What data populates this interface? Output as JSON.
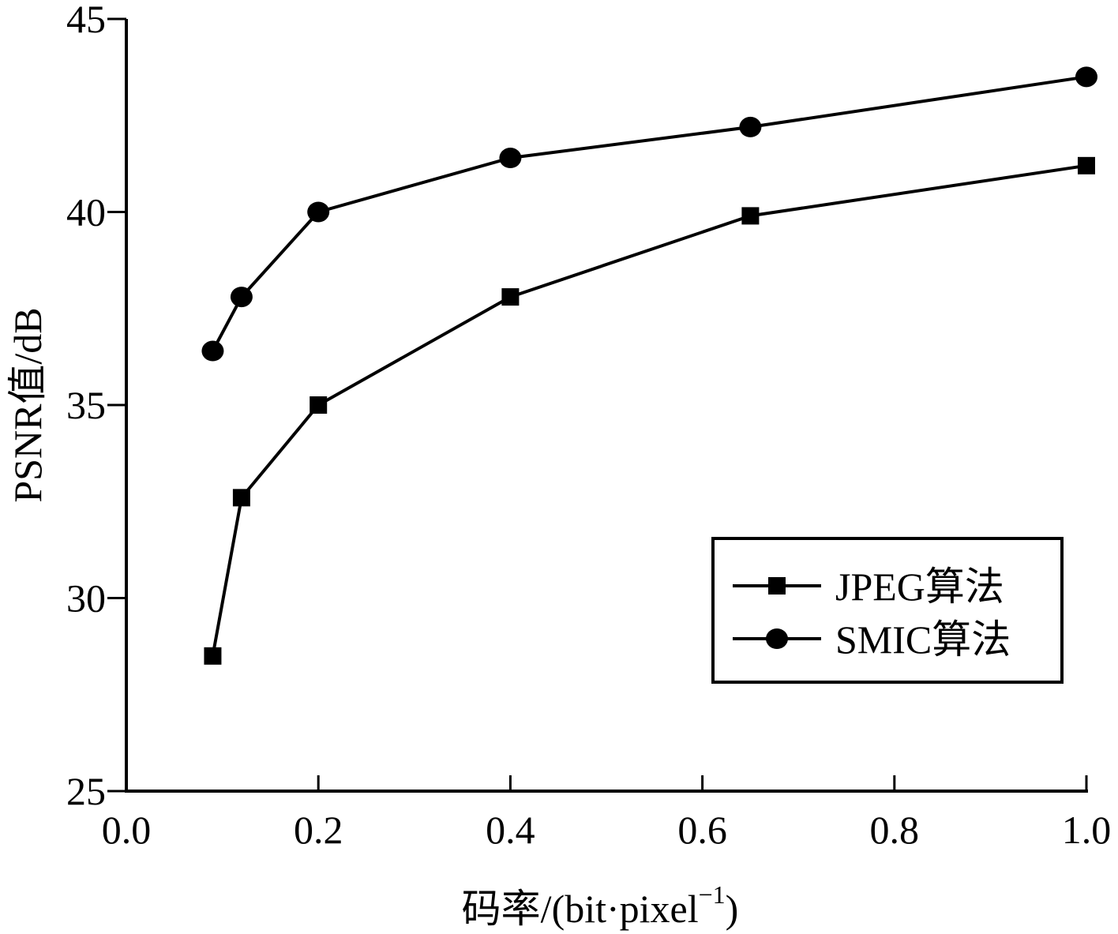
{
  "chart_data": {
    "type": "line",
    "title": "",
    "xlabel": "码率/(bit·pixel",
    "xlabel_superscript": "−1",
    "xlabel_close": ")",
    "ylabel": "PSNR值/dB",
    "xlim": [
      0.0,
      1.0
    ],
    "ylim": [
      25,
      45
    ],
    "xticks": [
      0.0,
      0.2,
      0.4,
      0.6,
      0.8,
      1.0
    ],
    "xtick_labels": [
      "0.0",
      "0.2",
      "0.4",
      "0.6",
      "0.8",
      "1.0"
    ],
    "yticks": [
      25,
      30,
      35,
      40,
      45
    ],
    "ytick_labels": [
      "25",
      "30",
      "35",
      "40",
      "45"
    ],
    "grid": false,
    "legend_position": "bottom-right",
    "series": [
      {
        "name": "JPEG算法",
        "marker": "square",
        "color": "#000000",
        "x": [
          0.09,
          0.12,
          0.2,
          0.4,
          0.65,
          1.0
        ],
        "y": [
          28.5,
          32.6,
          35.0,
          37.8,
          39.9,
          41.2
        ]
      },
      {
        "name": "SMIC算法",
        "marker": "circle",
        "color": "#000000",
        "x": [
          0.09,
          0.12,
          0.2,
          0.4,
          0.65,
          1.0
        ],
        "y": [
          36.4,
          37.8,
          40.0,
          41.4,
          42.2,
          43.5
        ]
      }
    ]
  }
}
